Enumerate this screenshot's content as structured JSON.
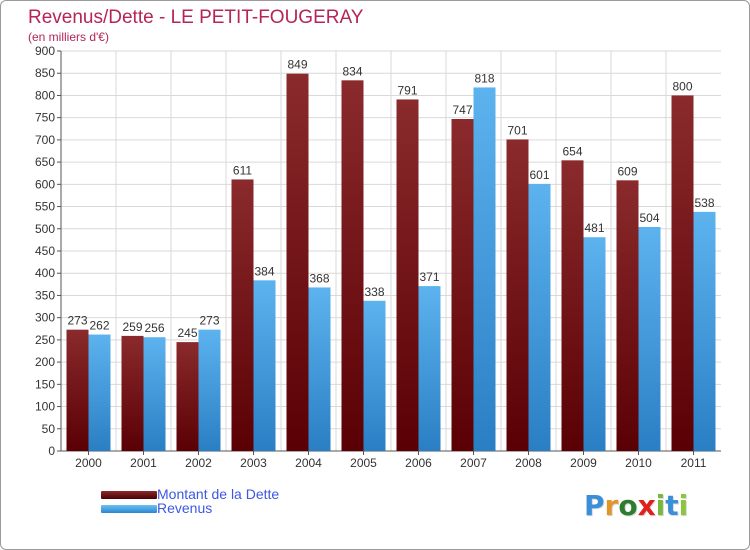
{
  "header": {
    "title": "Revenus/Dette - LE PETIT-FOUGERAY",
    "subtitle": "(en milliers d'€)"
  },
  "legend": {
    "items": [
      {
        "label": "Montant de la Dette",
        "color": "#7a1418"
      },
      {
        "label": "Revenus",
        "color": "#4aa3e6"
      }
    ]
  },
  "brand": {
    "text": "Proxiti",
    "letters": [
      "P",
      "r",
      "o",
      "x",
      "i",
      "t",
      "i"
    ],
    "colors": [
      "#3a8fd8",
      "#e2962a",
      "#2e7d2e",
      "#e0201d",
      "#78b83a",
      "#3a8fd8",
      "#8cc63f"
    ]
  },
  "chart_data": {
    "type": "bar",
    "title": "Revenus/Dette - LE PETIT-FOUGERAY",
    "subtitle": "(en milliers d'€)",
    "categories": [
      "2000",
      "2001",
      "2002",
      "2003",
      "2004",
      "2005",
      "2006",
      "2007",
      "2008",
      "2009",
      "2010",
      "2011"
    ],
    "series": [
      {
        "name": "Montant de la Dette",
        "color": "#7a1418",
        "values": [
          273,
          259,
          245,
          611,
          849,
          834,
          791,
          747,
          701,
          654,
          609,
          800
        ]
      },
      {
        "name": "Revenus",
        "color": "#4aa3e6",
        "values": [
          262,
          256,
          273,
          384,
          368,
          338,
          371,
          818,
          601,
          481,
          504,
          538
        ]
      }
    ],
    "ylim": [
      0,
      900
    ],
    "yticks": [
      0,
      50,
      100,
      150,
      200,
      250,
      300,
      350,
      400,
      450,
      500,
      550,
      600,
      650,
      700,
      750,
      800,
      850,
      900
    ],
    "grid": true,
    "legend_position": "bottom-left"
  }
}
